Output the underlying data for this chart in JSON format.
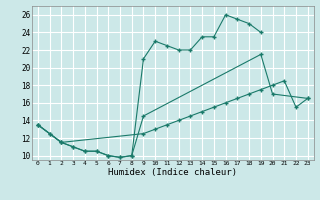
{
  "xlabel": "Humidex (Indice chaleur)",
  "bg_color": "#cce8e8",
  "grid_color": "#ffffff",
  "line_color": "#1a7a6a",
  "xlim": [
    -0.5,
    23.5
  ],
  "ylim": [
    9.5,
    27
  ],
  "xticks": [
    0,
    1,
    2,
    3,
    4,
    5,
    6,
    7,
    8,
    9,
    10,
    11,
    12,
    13,
    14,
    15,
    16,
    17,
    18,
    19,
    20,
    21,
    22,
    23
  ],
  "yticks": [
    10,
    12,
    14,
    16,
    18,
    20,
    22,
    24,
    26
  ],
  "series": [
    {
      "x": [
        0,
        1,
        2,
        3,
        4,
        5,
        6,
        7,
        8,
        9,
        10,
        11,
        12,
        13,
        14,
        15,
        16,
        17,
        18,
        19
      ],
      "y": [
        13.5,
        12.5,
        11.5,
        11.0,
        10.5,
        10.5,
        10.0,
        9.8,
        10.0,
        21.0,
        23.0,
        22.5,
        22.0,
        22.0,
        23.5,
        23.5,
        26.0,
        25.5,
        25.0,
        24.0
      ]
    },
    {
      "x": [
        0,
        1,
        2,
        3,
        4,
        5,
        6,
        7,
        8,
        9,
        19,
        20,
        23
      ],
      "y": [
        13.5,
        12.5,
        11.5,
        11.0,
        10.5,
        10.5,
        10.0,
        9.8,
        10.0,
        14.5,
        21.5,
        17.0,
        16.5
      ]
    },
    {
      "x": [
        0,
        2,
        9,
        10,
        11,
        12,
        13,
        14,
        15,
        16,
        17,
        18,
        19,
        20,
        21,
        22,
        23
      ],
      "y": [
        13.5,
        11.5,
        12.5,
        13.0,
        13.5,
        14.0,
        14.5,
        15.0,
        15.5,
        16.0,
        16.5,
        17.0,
        17.5,
        18.0,
        18.5,
        15.5,
        16.5
      ]
    }
  ]
}
